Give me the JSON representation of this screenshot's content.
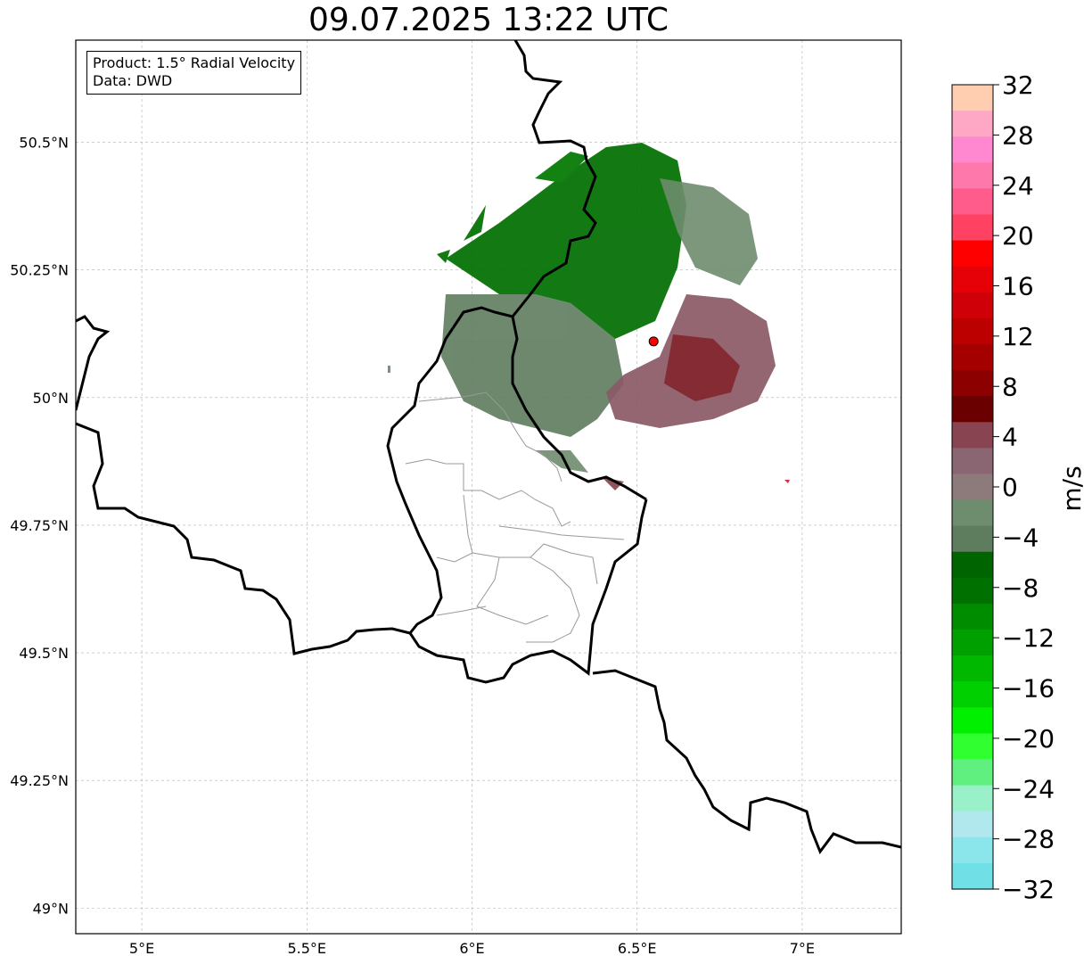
{
  "title": "09.07.2025 13:22 UTC",
  "infobox": {
    "product": "Product: 1.5° Radial Velocity",
    "source": "Data: DWD"
  },
  "map": {
    "lon_range": [
      4.8,
      7.3
    ],
    "lat_range": [
      48.95,
      50.7
    ],
    "lon_ticks": [
      {
        "value": 5.0,
        "label": "5°E"
      },
      {
        "value": 5.5,
        "label": "5.5°E"
      },
      {
        "value": 6.0,
        "label": "6°E"
      },
      {
        "value": 6.5,
        "label": "6.5°E"
      },
      {
        "value": 7.0,
        "label": "7°E"
      }
    ],
    "lat_ticks": [
      {
        "value": 49.0,
        "label": "49°N"
      },
      {
        "value": 49.25,
        "label": "49.25°N"
      },
      {
        "value": 49.5,
        "label": "49.5°N"
      },
      {
        "value": 49.75,
        "label": "49.75°N"
      },
      {
        "value": 50.0,
        "label": "50°N"
      },
      {
        "value": 50.25,
        "label": "50.25°N"
      },
      {
        "value": 50.5,
        "label": "50.5°N"
      }
    ],
    "radar_site": {
      "lon": 6.55,
      "lat": 50.11,
      "color": "#ff0000"
    },
    "grid": true,
    "colors": {
      "border": "#000000",
      "subdivision": "#999999",
      "grid": "#b0b0b0"
    }
  },
  "colorbar": {
    "label": "m/s",
    "range": [
      -32,
      32
    ],
    "ticks": [
      "32",
      "28",
      "24",
      "20",
      "16",
      "12",
      "8",
      "4",
      "0",
      "−4",
      "−8",
      "−12",
      "−16",
      "−20",
      "−24",
      "−28",
      "−32"
    ],
    "bins_top_to_bottom": [
      "#ffcdb0",
      "#ffa8c6",
      "#ff88d0",
      "#ff78ac",
      "#ff5c8c",
      "#ff4262",
      "#ff0000",
      "#e60008",
      "#d00008",
      "#bc0000",
      "#a40000",
      "#8c0000",
      "#6a0000",
      "#884450",
      "#8a6672",
      "#8c7b7a",
      "#6e8c6e",
      "#5e7c5e",
      "#006400",
      "#007000",
      "#008c00",
      "#00a000",
      "#00b800",
      "#00d000",
      "#00f000",
      "#30ff30",
      "#60f080",
      "#9af0c8",
      "#b0e8ee",
      "#8ae6ea",
      "#70e0e6"
    ]
  }
}
